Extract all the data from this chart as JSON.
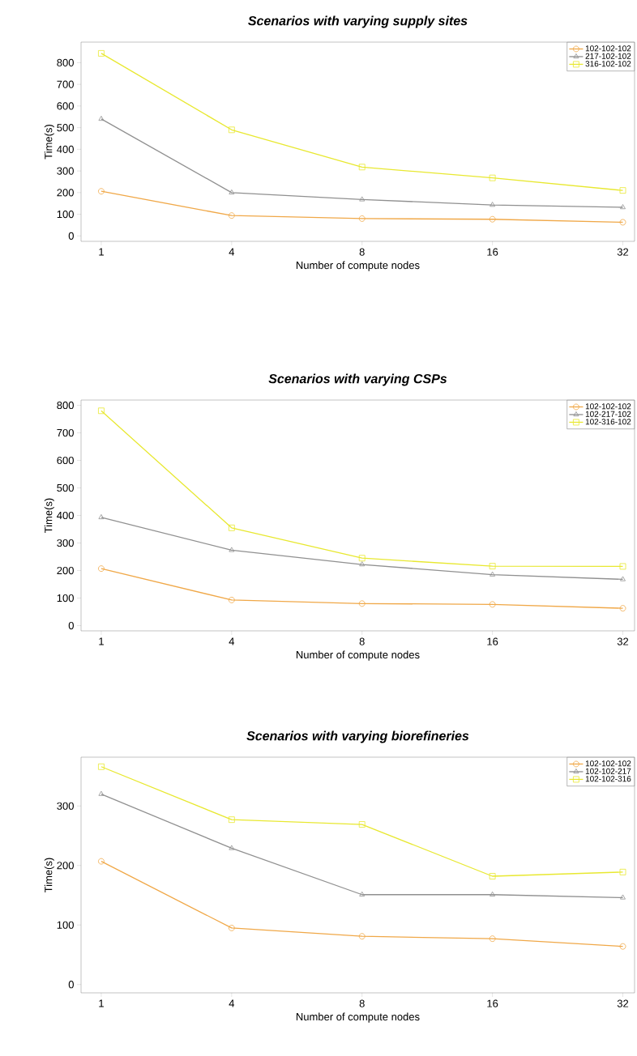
{
  "chart_data": [
    {
      "type": "line",
      "title": "Scenarios with varying supply sites",
      "xlabel": "Number of compute nodes",
      "ylabel": "Time(s)",
      "categories": [
        "1",
        "4",
        "8",
        "16",
        "32"
      ],
      "ylim": [
        -25,
        895
      ],
      "yticks": [
        0,
        100,
        200,
        300,
        400,
        500,
        600,
        700,
        800
      ],
      "legend": "top right",
      "line_style": "solid",
      "series": [
        {
          "name": "102-102-102",
          "color": "#f0a848",
          "marker": "circle",
          "values": [
            206,
            94,
            80,
            77,
            63
          ]
        },
        {
          "name": "217-102-102",
          "color": "#909090",
          "marker": "triangle",
          "values": [
            540,
            200,
            168,
            143,
            132
          ]
        },
        {
          "name": "316-102-102",
          "color": "#e8e830",
          "marker": "square",
          "values": [
            843,
            490,
            318,
            268,
            210
          ]
        }
      ]
    },
    {
      "type": "line",
      "title": "Scenarios with varying CSPs",
      "xlabel": "Number of compute nodes",
      "ylabel": "Time(s)",
      "categories": [
        "1",
        "4",
        "8",
        "16",
        "32"
      ],
      "ylim": [
        -19,
        819
      ],
      "yticks": [
        0,
        100,
        200,
        300,
        400,
        500,
        600,
        700,
        800
      ],
      "legend": "top right",
      "line_style": "solid",
      "series": [
        {
          "name": "102-102-102",
          "color": "#f0a848",
          "marker": "circle",
          "values": [
            207,
            93,
            80,
            77,
            63
          ]
        },
        {
          "name": "102-217-102",
          "color": "#909090",
          "marker": "triangle",
          "values": [
            393,
            274,
            222,
            185,
            168
          ]
        },
        {
          "name": "102-316-102",
          "color": "#e8e830",
          "marker": "square",
          "values": [
            780,
            355,
            245,
            216,
            215
          ]
        }
      ]
    },
    {
      "type": "line",
      "title": "Scenarios with varying biorefineries",
      "xlabel": "Number of compute nodes",
      "ylabel": "Time(s)",
      "categories": [
        "1",
        "4",
        "8",
        "16",
        "32"
      ],
      "ylim": [
        -14,
        382
      ],
      "yticks": [
        0,
        100,
        200,
        300
      ],
      "legend": "top right",
      "line_style": "solid",
      "series": [
        {
          "name": "102-102-102",
          "color": "#f0a848",
          "marker": "circle",
          "values": [
            207,
            95,
            81,
            77,
            64
          ]
        },
        {
          "name": "102-102-217",
          "color": "#909090",
          "marker": "triangle",
          "values": [
            320,
            229,
            151,
            151,
            146
          ]
        },
        {
          "name": "102-102-316",
          "color": "#e8e830",
          "marker": "square",
          "values": [
            366,
            277,
            269,
            182,
            189
          ]
        }
      ]
    }
  ]
}
